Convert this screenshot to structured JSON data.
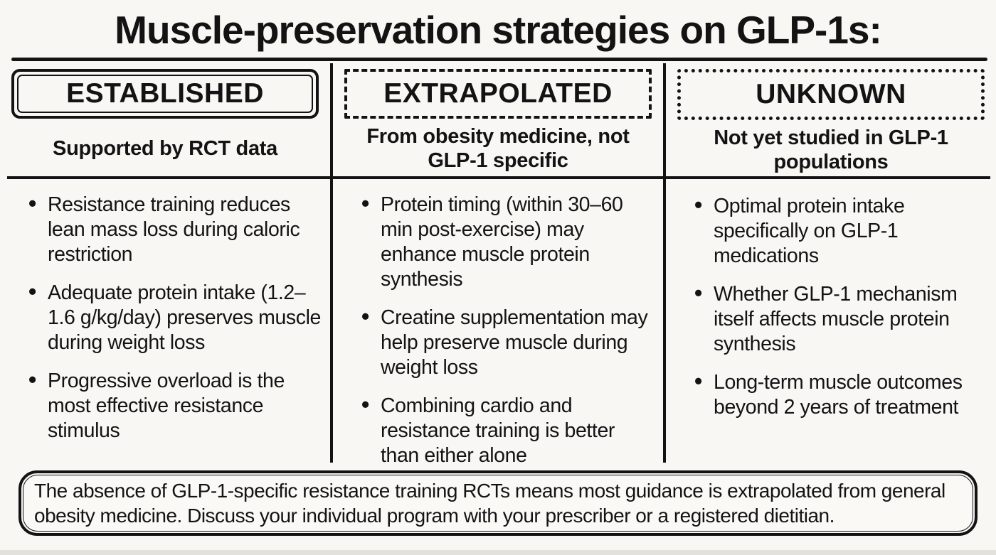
{
  "title": "Muscle-preservation strategies on GLP-1s:",
  "columns": [
    {
      "id": "established",
      "header": "ESTABLISHED",
      "header_border": "solid-double",
      "subtitle": "Supported by RCT data",
      "bullets": [
        "Resistance training reduces lean mass loss during caloric restriction",
        "Adequate protein intake (1.2–1.6 g/kg/day) preserves muscle during weight loss",
        "Progressive overload is the most effective resistance stimulus"
      ]
    },
    {
      "id": "extrapolated",
      "header": "EXTRAPOLATED",
      "header_border": "dashed",
      "subtitle": "From obesity medicine, not GLP-1 specific",
      "bullets": [
        "Protein timing (within 30–60 min post-exercise) may enhance muscle protein synthesis",
        "Creatine supplementation may help preserve muscle during weight loss",
        "Combining cardio and resistance training is better than either alone"
      ]
    },
    {
      "id": "unknown",
      "header": "UNKNOWN",
      "header_border": "dotted",
      "subtitle": "Not yet studied in GLP-1 populations",
      "bullets": [
        "Optimal protein intake specifically on GLP-1 medications",
        "Whether GLP-1 mechanism itself affects muscle protein synthesis",
        "Long-term muscle outcomes beyond 2 years of treatment"
      ]
    }
  ],
  "footer": {
    "text": "The absence of GLP-1-specific resistance training RCTs means most guidance is extrapolated from general obesity medicine. Discuss your individual program with your prescriber or a registered dietitian."
  },
  "colors": {
    "background": "#f8f7f4",
    "ink": "#131313"
  }
}
